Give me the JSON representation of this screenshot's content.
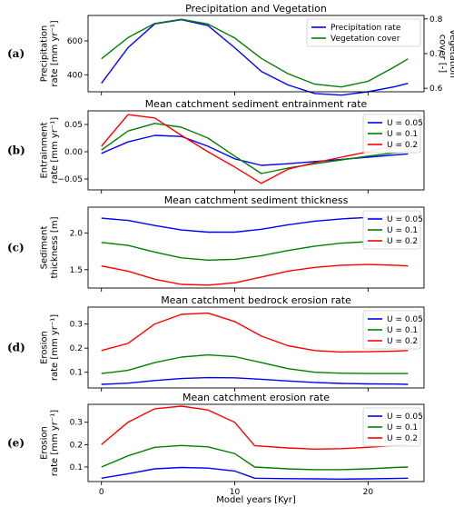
{
  "figure": {
    "xlabel": "Model years [Kyr]",
    "x_ticks": [
      0,
      10,
      20
    ],
    "xlim": [
      -1,
      24.2
    ]
  },
  "chart_data": [
    {
      "panel": "(a)",
      "type": "line",
      "title": "Precipitation and Vegetation",
      "ylabel": [
        "Precipitation",
        "rate [mm yr⁻¹]"
      ],
      "ylim": [
        300,
        750
      ],
      "y_ticks": [
        400,
        600
      ],
      "y2label": [
        "Vegetation",
        "cover [-]"
      ],
      "y2lim": [
        0.59,
        0.81
      ],
      "y2_ticks": [
        0.6,
        0.7,
        0.8
      ],
      "legend": "top-right",
      "x": [
        0,
        2,
        4,
        6,
        8,
        10,
        12,
        14,
        16,
        18,
        20,
        22,
        23
      ],
      "series": [
        {
          "name": "Precipitation rate",
          "color": "#0000ff",
          "axis": "left",
          "values": [
            350,
            560,
            700,
            725,
            690,
            560,
            420,
            340,
            290,
            280,
            300,
            330,
            350
          ]
        },
        {
          "name": "Vegetation cover",
          "color": "#008000",
          "axis": "right",
          "values": [
            0.685,
            0.746,
            0.787,
            0.799,
            0.785,
            0.745,
            0.686,
            0.642,
            0.612,
            0.604,
            0.62,
            0.662,
            0.685
          ]
        }
      ]
    },
    {
      "panel": "(b)",
      "type": "line",
      "title": "Mean catchment sediment entrainment rate",
      "ylabel": [
        "Entrainment",
        "rate [mm yr⁻¹]"
      ],
      "ylim": [
        -0.07,
        0.075
      ],
      "y_ticks": [
        -0.05,
        0.0,
        0.05
      ],
      "y_tick_labels": [
        "−0.05",
        "0.00",
        "0.05"
      ],
      "legend": "top-right",
      "x": [
        0,
        2,
        4,
        6,
        8,
        10,
        12,
        14,
        16,
        18,
        20,
        22,
        23
      ],
      "series": [
        {
          "name": "U = 0.05",
          "color": "#0000ff",
          "values": [
            -0.003,
            0.018,
            0.03,
            0.028,
            0.01,
            -0.013,
            -0.025,
            -0.022,
            -0.018,
            -0.014,
            -0.01,
            -0.006,
            -0.004
          ]
        },
        {
          "name": "U = 0.1",
          "color": "#008000",
          "values": [
            0.003,
            0.038,
            0.052,
            0.045,
            0.025,
            -0.008,
            -0.04,
            -0.03,
            -0.022,
            -0.015,
            -0.008,
            -0.002,
            0.0
          ]
        },
        {
          "name": "U = 0.2",
          "color": "#ff0000",
          "values": [
            0.01,
            0.068,
            0.062,
            0.03,
            0.0,
            -0.028,
            -0.058,
            -0.032,
            -0.02,
            -0.01,
            0.0,
            0.012,
            0.02
          ]
        }
      ]
    },
    {
      "panel": "(c)",
      "type": "line",
      "title": "Mean catchment sediment thickness",
      "ylabel": [
        "Sediment",
        "thickness [m]"
      ],
      "ylim": [
        1.25,
        2.35
      ],
      "y_ticks": [
        1.5,
        2.0
      ],
      "y_tick_labels": [
        "1.5",
        "2.0"
      ],
      "legend": "top-right",
      "x": [
        0,
        2,
        4,
        6,
        8,
        10,
        12,
        14,
        16,
        18,
        20,
        22,
        23
      ],
      "series": [
        {
          "name": "U = 0.05",
          "color": "#0000ff",
          "values": [
            2.2,
            2.17,
            2.1,
            2.04,
            2.01,
            2.01,
            2.05,
            2.11,
            2.16,
            2.19,
            2.21,
            2.21,
            2.21
          ]
        },
        {
          "name": "U = 0.1",
          "color": "#008000",
          "values": [
            1.87,
            1.83,
            1.74,
            1.66,
            1.63,
            1.64,
            1.69,
            1.76,
            1.82,
            1.86,
            1.88,
            1.89,
            1.89
          ]
        },
        {
          "name": "U = 0.2",
          "color": "#ff0000",
          "values": [
            1.55,
            1.48,
            1.37,
            1.3,
            1.29,
            1.32,
            1.4,
            1.48,
            1.53,
            1.56,
            1.57,
            1.56,
            1.55
          ]
        }
      ]
    },
    {
      "panel": "(d)",
      "type": "line",
      "title": "Mean catchment bedrock erosion rate",
      "ylabel": [
        "Erosion",
        "rate [mm yr⁻¹]"
      ],
      "ylim": [
        0.035,
        0.37
      ],
      "y_ticks": [
        0.1,
        0.2,
        0.3
      ],
      "y_tick_labels": [
        "0.1",
        "0.2",
        "0.3"
      ],
      "legend": "top-right",
      "x": [
        0,
        2,
        4,
        6,
        8,
        10,
        12,
        14,
        16,
        18,
        20,
        22,
        23
      ],
      "series": [
        {
          "name": "U = 0.05",
          "color": "#0000ff",
          "values": [
            0.05,
            0.055,
            0.066,
            0.074,
            0.078,
            0.077,
            0.071,
            0.064,
            0.058,
            0.054,
            0.052,
            0.051,
            0.05
          ]
        },
        {
          "name": "U = 0.1",
          "color": "#008000",
          "values": [
            0.095,
            0.108,
            0.14,
            0.163,
            0.172,
            0.165,
            0.14,
            0.115,
            0.1,
            0.096,
            0.095,
            0.095,
            0.095
          ]
        },
        {
          "name": "U = 0.2",
          "color": "#ff0000",
          "values": [
            0.19,
            0.22,
            0.3,
            0.34,
            0.345,
            0.31,
            0.25,
            0.21,
            0.19,
            0.184,
            0.185,
            0.188,
            0.19
          ]
        }
      ]
    },
    {
      "panel": "(e)",
      "type": "line",
      "title": "Mean catchment erosion rate",
      "ylabel": [
        "Erosion",
        "rate [mm yr⁻¹]"
      ],
      "ylim": [
        0.035,
        0.38
      ],
      "y_ticks": [
        0.1,
        0.2,
        0.3
      ],
      "y_tick_labels": [
        "0.1",
        "0.2",
        "0.3"
      ],
      "legend": "top-right",
      "x": [
        0,
        2,
        4,
        6,
        8,
        10,
        11.5,
        14,
        16,
        18,
        20,
        22,
        23
      ],
      "series": [
        {
          "name": "U = 0.05",
          "color": "#0000ff",
          "values": [
            0.05,
            0.07,
            0.092,
            0.098,
            0.095,
            0.082,
            0.05,
            0.048,
            0.047,
            0.046,
            0.047,
            0.049,
            0.05
          ]
        },
        {
          "name": "U = 0.1",
          "color": "#008000",
          "values": [
            0.1,
            0.15,
            0.188,
            0.196,
            0.19,
            0.16,
            0.1,
            0.092,
            0.088,
            0.088,
            0.092,
            0.098,
            0.1
          ]
        },
        {
          "name": "U = 0.2",
          "color": "#ff0000",
          "values": [
            0.2,
            0.3,
            0.36,
            0.372,
            0.355,
            0.3,
            0.195,
            0.185,
            0.18,
            0.182,
            0.188,
            0.196,
            0.2
          ]
        }
      ]
    }
  ]
}
